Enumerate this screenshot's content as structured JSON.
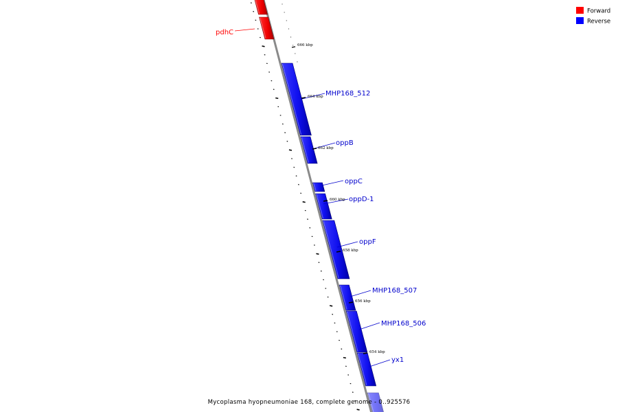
{
  "legend": {
    "items": [
      {
        "label": "Forward",
        "color": "#ff0000"
      },
      {
        "label": "Reverse",
        "color": "#0000ff"
      }
    ]
  },
  "caption": "Mycoplasma hyopneumoniae 168, complete genome - 0..925576",
  "colors": {
    "forward": "#ff0000",
    "reverse": "#1a1aff",
    "backbone": "#8a8a8a",
    "tick": "#000000"
  },
  "genes": [
    {
      "name": "pdhC",
      "strand": "forward"
    },
    {
      "name": "MHP168_512",
      "strand": "reverse"
    },
    {
      "name": "oppB",
      "strand": "reverse"
    },
    {
      "name": "oppC",
      "strand": "reverse"
    },
    {
      "name": "oppD-1",
      "strand": "reverse"
    },
    {
      "name": "oppF",
      "strand": "reverse"
    },
    {
      "name": "MHP168_507",
      "strand": "reverse"
    },
    {
      "name": "MHP168_506",
      "strand": "reverse"
    },
    {
      "name": "yx1",
      "strand": "reverse"
    }
  ],
  "ticks": [
    {
      "label": "666 kbp"
    },
    {
      "label": "664 kbp"
    },
    {
      "label": "662 kbp"
    },
    {
      "label": "660 kbp"
    },
    {
      "label": "658 kbp"
    },
    {
      "label": "656 kbp"
    },
    {
      "label": "654 kbp"
    }
  ]
}
